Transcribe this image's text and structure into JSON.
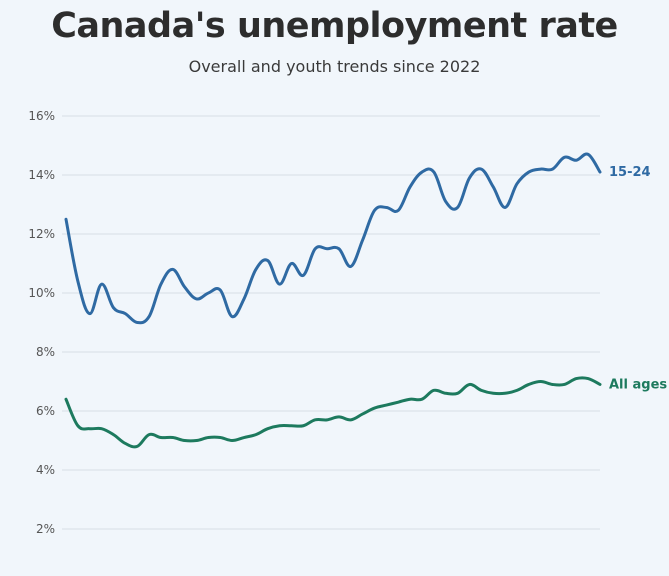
{
  "chart_data": {
    "type": "line",
    "title": "Canada's unemployment rate",
    "subtitle": "Overall and youth trends since 2022",
    "xlabel": "",
    "ylabel": "",
    "ylim": [
      2,
      16
    ],
    "yticks": [
      2,
      4,
      6,
      8,
      10,
      12,
      14,
      16
    ],
    "ytick_suffix": "%",
    "grid": true,
    "x_range": [
      0,
      37
    ],
    "series": [
      {
        "name": "15-24",
        "color": "#2f6aa3",
        "values": [
          12.5,
          10.4,
          9.3,
          10.3,
          9.5,
          9.3,
          9.0,
          9.2,
          10.3,
          10.8,
          10.2,
          9.8,
          10.0,
          10.1,
          9.2,
          9.8,
          10.8,
          11.1,
          10.3,
          11.0,
          10.6,
          11.5,
          11.5,
          11.5,
          10.9,
          11.8,
          12.8,
          12.9,
          12.8,
          13.6,
          14.1,
          14.1,
          13.1,
          12.9,
          13.9,
          14.2,
          13.6,
          12.9,
          13.7,
          14.1,
          14.2,
          14.2,
          14.6,
          14.5,
          14.7,
          14.1
        ]
      },
      {
        "name": "All ages",
        "color": "#1d7a5e",
        "values": [
          6.4,
          5.5,
          5.4,
          5.4,
          5.2,
          4.9,
          4.8,
          5.2,
          5.1,
          5.1,
          5.0,
          5.0,
          5.1,
          5.1,
          5.0,
          5.1,
          5.2,
          5.4,
          5.5,
          5.5,
          5.5,
          5.7,
          5.7,
          5.8,
          5.7,
          5.9,
          6.1,
          6.2,
          6.3,
          6.4,
          6.4,
          6.7,
          6.6,
          6.6,
          6.9,
          6.7,
          6.6,
          6.6,
          6.7,
          6.9,
          7.0,
          6.9,
          6.9,
          7.1,
          7.1,
          6.9
        ]
      }
    ]
  }
}
